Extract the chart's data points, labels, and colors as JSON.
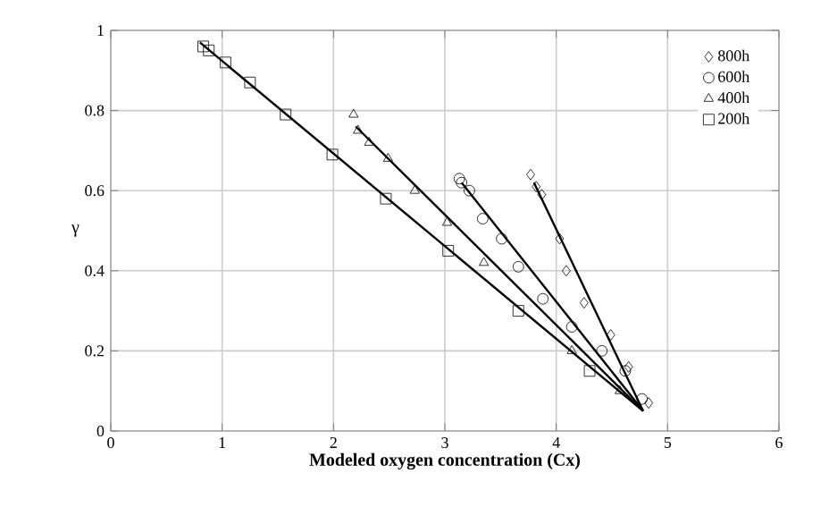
{
  "chart_data": {
    "type": "scatter",
    "xlabel": "Modeled oxygen concentration (Cx)",
    "ylabel": "γ",
    "xlim": [
      0,
      6
    ],
    "ylim": [
      0,
      1
    ],
    "xticks": [
      0,
      1,
      2,
      3,
      4,
      5,
      6
    ],
    "yticks": [
      0,
      0.2,
      0.4,
      0.6,
      0.8,
      1
    ],
    "grid": true,
    "legend": "top right",
    "series": [
      {
        "name": "800h",
        "color": "#000000",
        "marker": "diamond",
        "x": [
          3.77,
          3.82,
          3.87,
          4.03,
          4.09,
          4.25,
          4.49,
          4.65,
          4.83
        ],
        "values": [
          0.64,
          0.61,
          0.59,
          0.48,
          0.4,
          0.32,
          0.24,
          0.16,
          0.07
        ]
      },
      {
        "name": "600h",
        "color": "#000000",
        "marker": "circle",
        "x": [
          3.13,
          3.15,
          3.22,
          3.34,
          3.51,
          3.66,
          3.88,
          4.14,
          4.41,
          4.62,
          4.77
        ],
        "values": [
          0.63,
          0.62,
          0.6,
          0.53,
          0.48,
          0.41,
          0.33,
          0.26,
          0.2,
          0.15,
          0.08
        ]
      },
      {
        "name": "400h",
        "color": "#000000",
        "marker": "triangle",
        "x": [
          2.18,
          2.22,
          2.32,
          2.49,
          2.73,
          3.02,
          3.35,
          4.14,
          4.57
        ],
        "values": [
          0.79,
          0.75,
          0.72,
          0.68,
          0.6,
          0.52,
          0.42,
          0.2,
          0.1
        ]
      },
      {
        "name": "200h",
        "color": "#000000",
        "marker": "square",
        "x": [
          0.83,
          0.88,
          1.03,
          1.25,
          1.57,
          1.99,
          2.47,
          3.03,
          3.66,
          4.3
        ],
        "values": [
          0.96,
          0.95,
          0.92,
          0.87,
          0.79,
          0.69,
          0.58,
          0.45,
          0.3,
          0.15
        ]
      },
      {
        "type": "line",
        "color": "#000000",
        "marker": "none",
        "x": [
          3.8,
          4.78
        ],
        "values": [
          0.62,
          0.05
        ]
      },
      {
        "type": "line",
        "color": "#000000",
        "marker": "none",
        "x": [
          3.15,
          4.78
        ],
        "values": [
          0.62,
          0.05
        ]
      },
      {
        "type": "line",
        "color": "#000000",
        "marker": "none",
        "x": [
          2.2,
          4.78
        ],
        "values": [
          0.76,
          0.05
        ]
      },
      {
        "type": "line",
        "color": "#000000",
        "marker": "none",
        "x": [
          0.8,
          4.78
        ],
        "values": [
          0.97,
          0.05
        ]
      }
    ]
  }
}
